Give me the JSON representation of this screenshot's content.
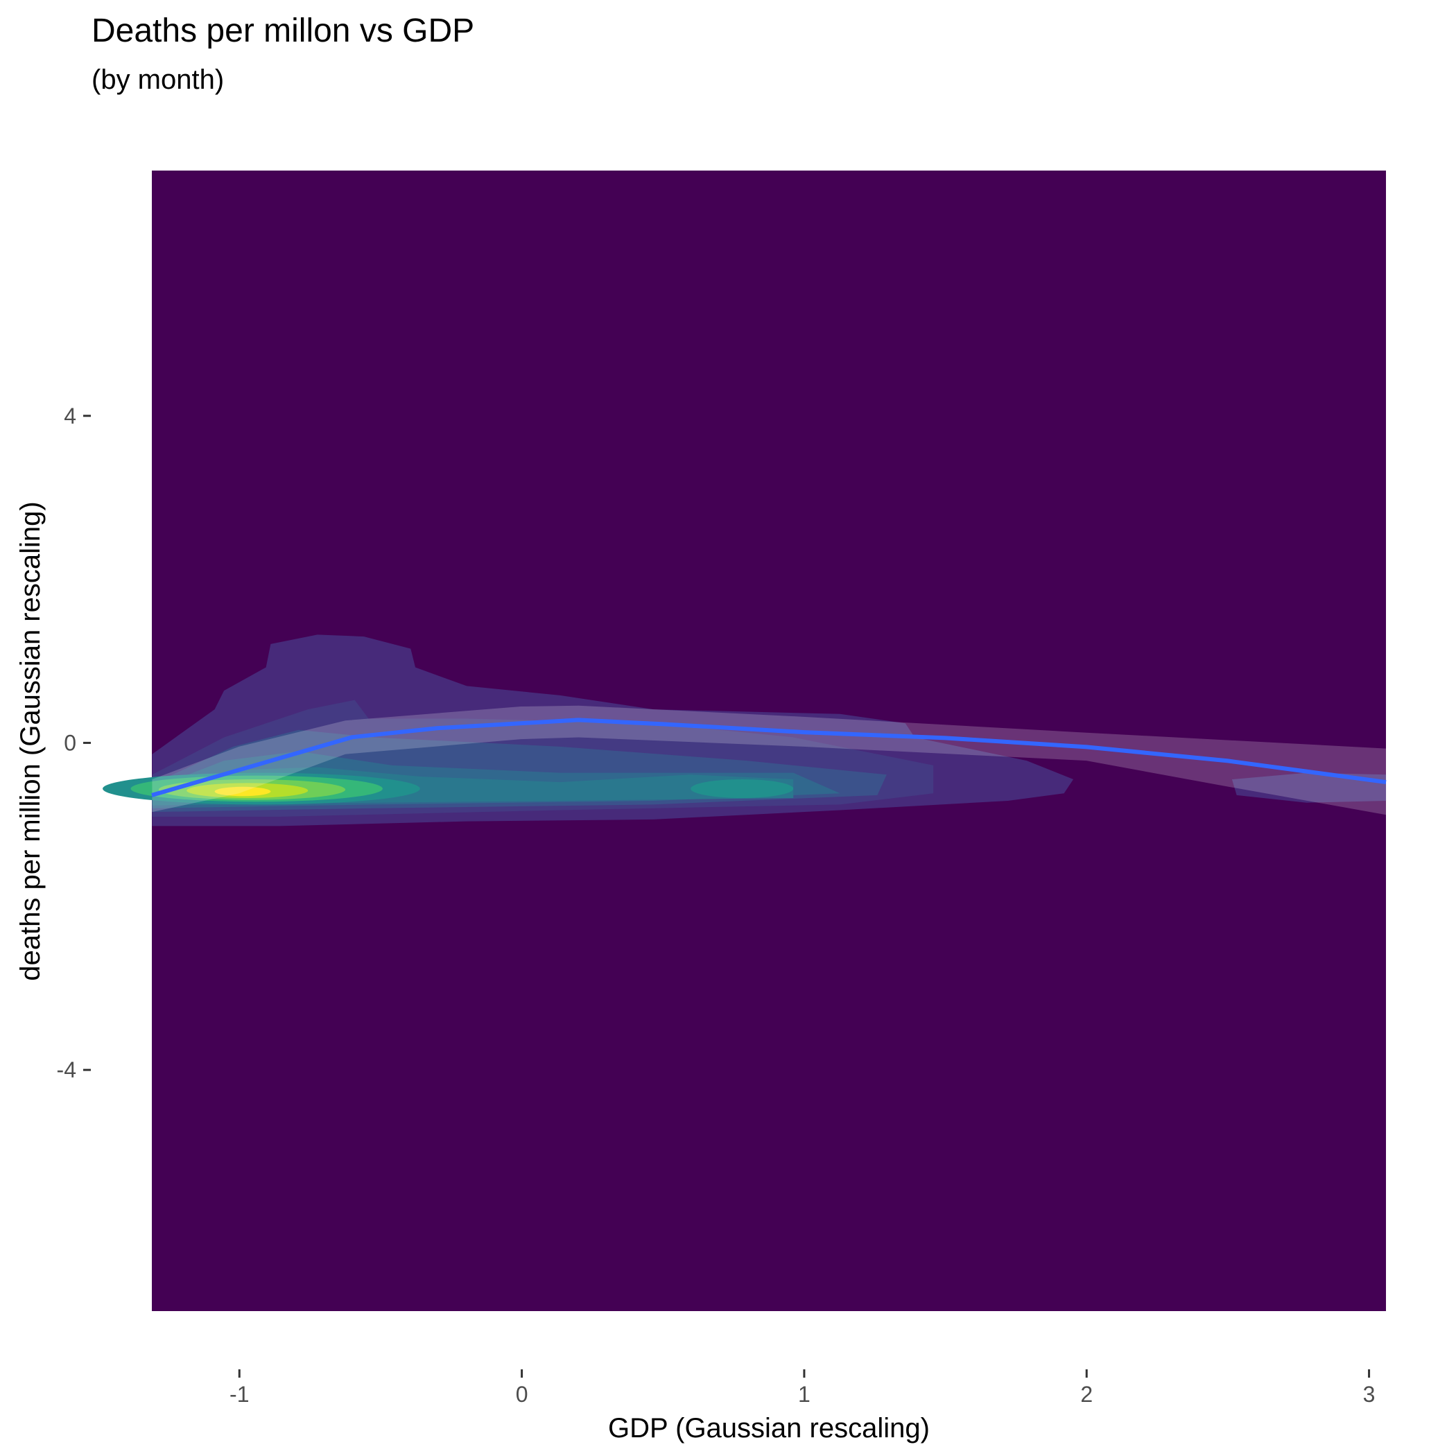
{
  "chart_data": {
    "type": "line",
    "title": "Deaths per millon vs GDP",
    "subtitle": "(by month)",
    "x_label": "GDP (Gaussian rescaling)",
    "y_label": "deaths per million (Gaussian rescaling)",
    "x": [
      -1.31,
      -1,
      -0.6,
      -0.3,
      0,
      0.2,
      0.5,
      1,
      1.5,
      2,
      2.5,
      3.06
    ],
    "series": [
      {
        "color": "#3366ff",
        "values": [
          -0.64,
          -0.33,
          0.07,
          0.18,
          0.24,
          0.28,
          0.23,
          0.13,
          0.06,
          -0.05,
          -0.22,
          -0.48
        ]
      }
    ],
    "xlim": [
      -1.31,
      3.06
    ],
    "xticks": [
      -1,
      0,
      1,
      2,
      3
    ],
    "ylim": [
      -6.95,
      7.0
    ],
    "yticks": [
      -4,
      0,
      4
    ],
    "background": "#440154"
  }
}
